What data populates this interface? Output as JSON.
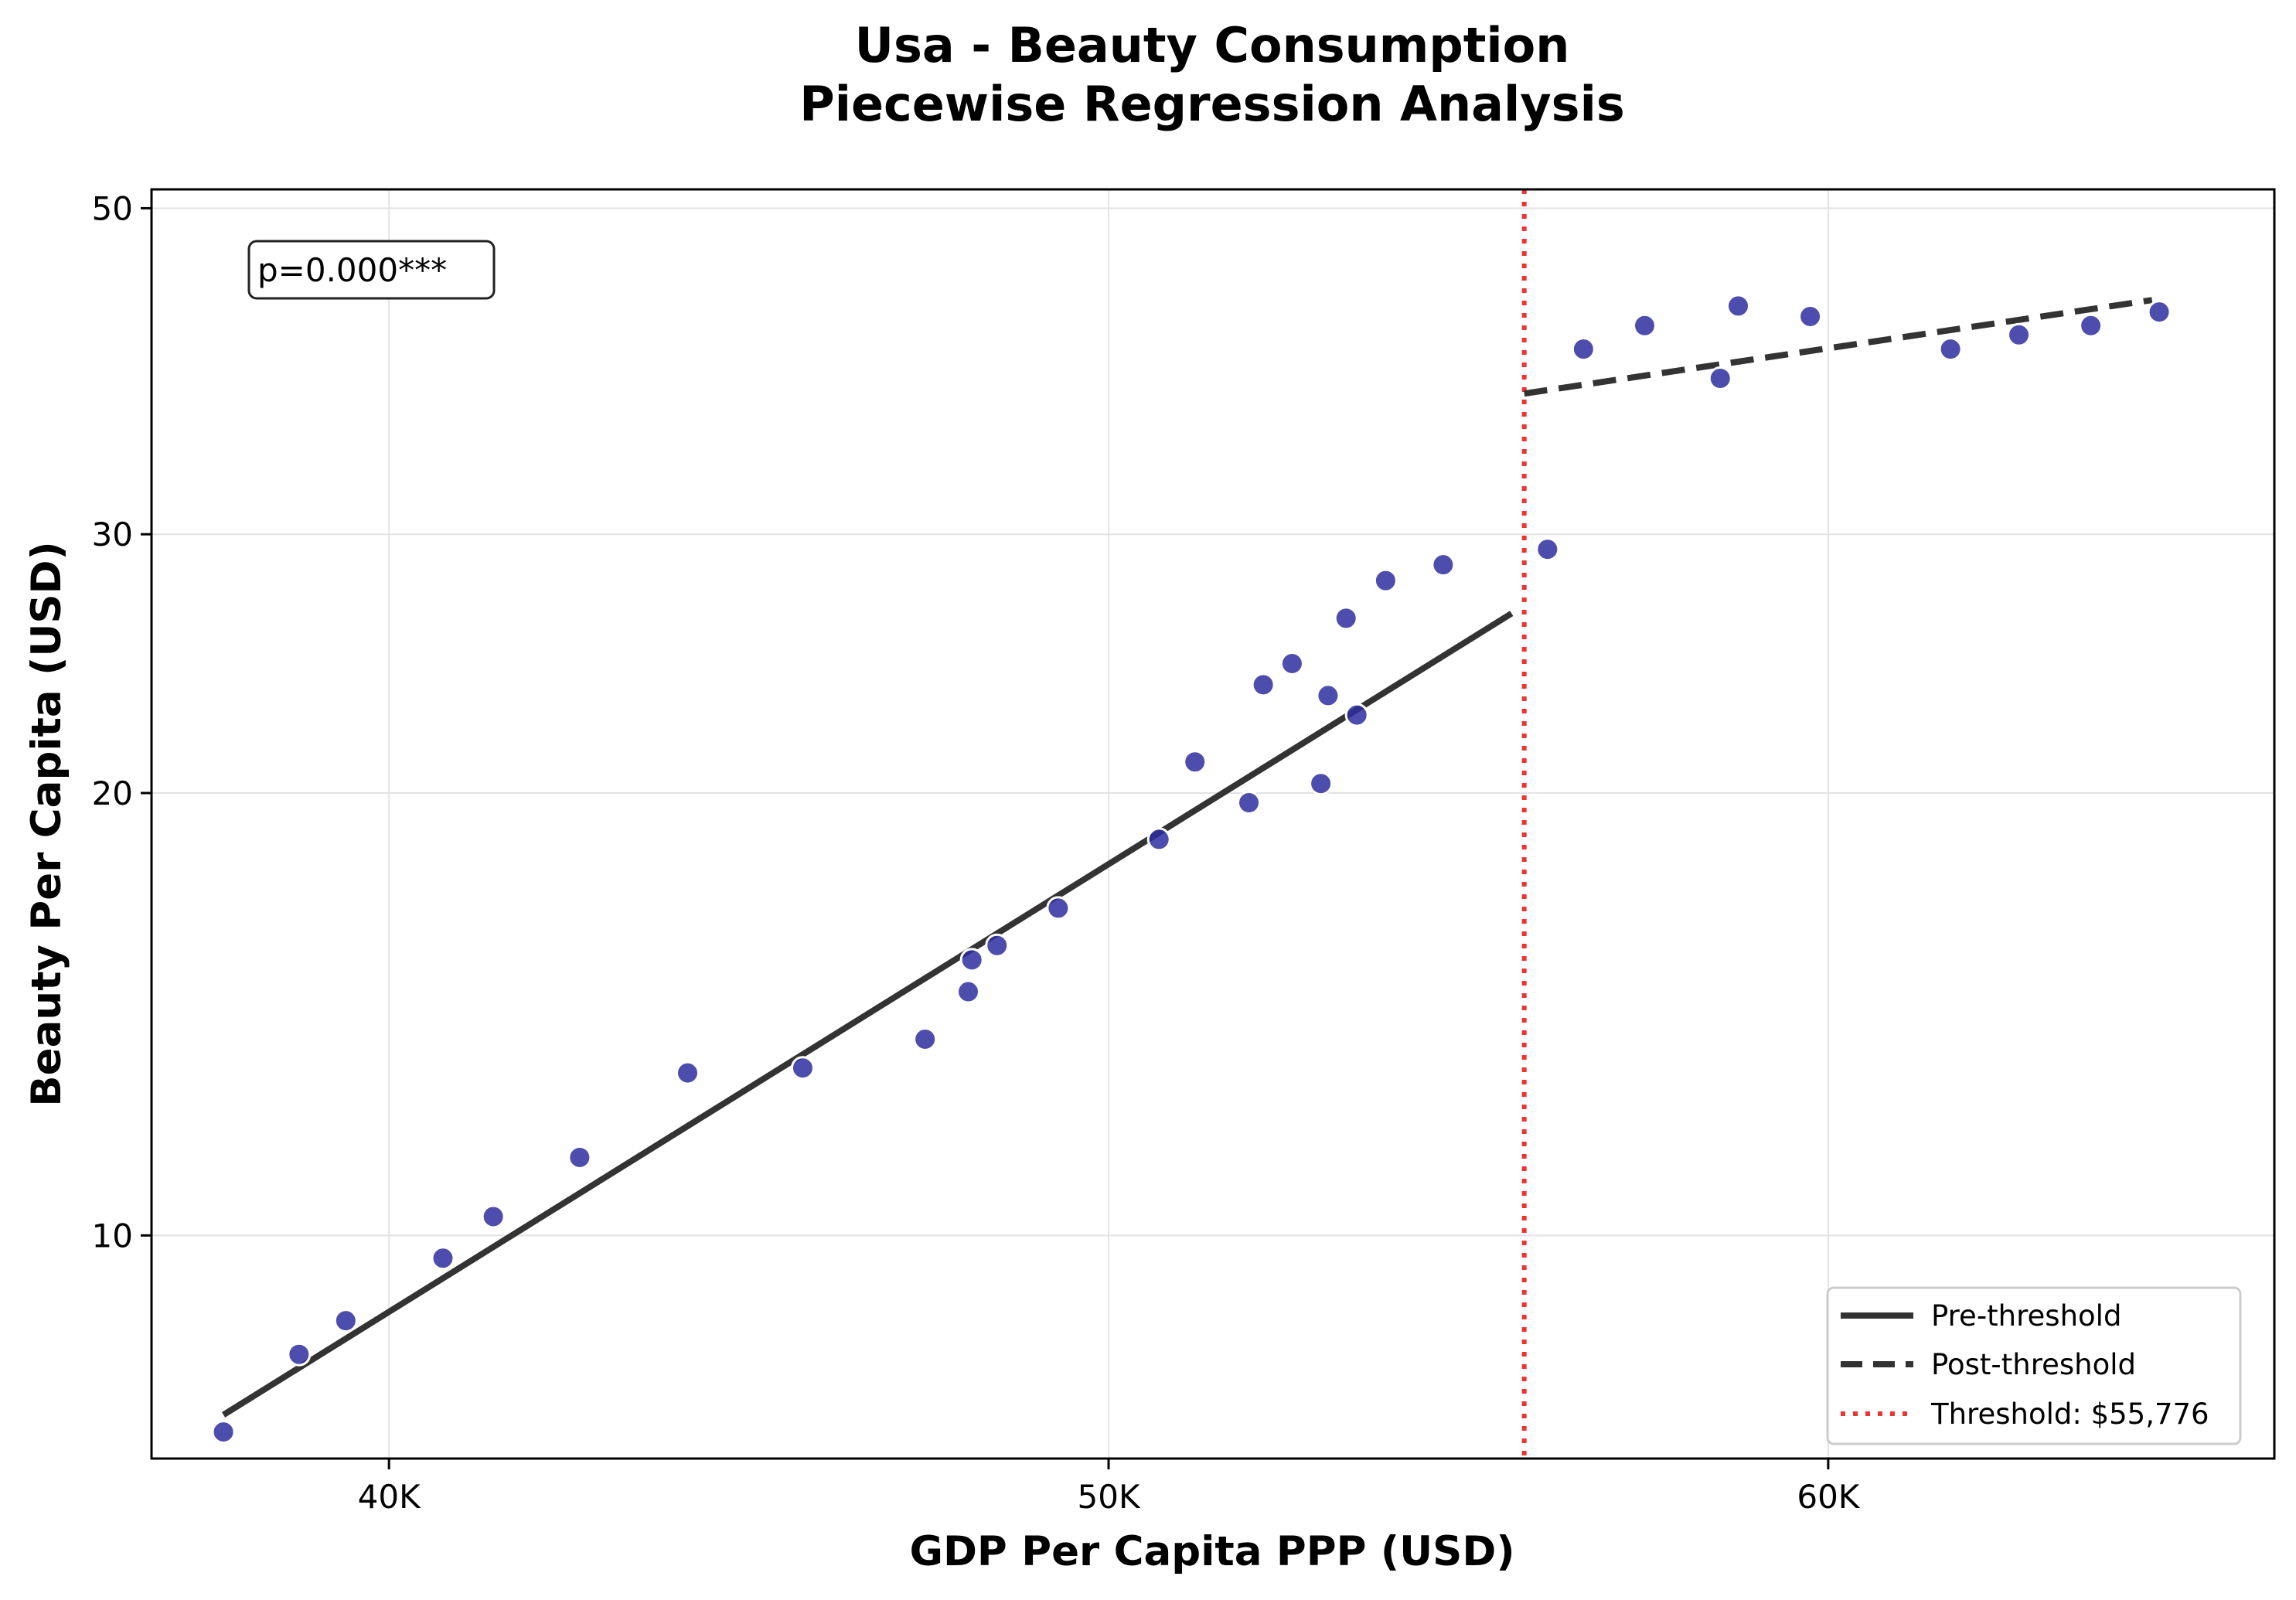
{
  "chart_data": {
    "type": "scatter",
    "title": "Usa - Beauty Consumption",
    "subtitle": "Piecewise Regression Analysis",
    "xlabel": "GDP Per Capita PPP (USD)",
    "ylabel": "Beauty Per Capita (USD)",
    "x_scale": "linear",
    "y_scale": "log",
    "xlim": [
      36700,
      66200
    ],
    "ylim": [
      7.05,
      51.5
    ],
    "x_ticks": [
      40000,
      50000,
      60000
    ],
    "x_tick_labels": [
      "40K",
      "50K",
      "60K"
    ],
    "y_ticks": [
      10,
      20,
      30,
      50
    ],
    "y_tick_labels": [
      "10",
      "20",
      "30",
      "50"
    ],
    "grid": true,
    "legend_position": "bottom-right",
    "annotation": "p=0.000***",
    "colors": {
      "points": "#2e2e9f",
      "fit": "#333333",
      "threshold": "#ee3333"
    },
    "threshold": {
      "x": 55776,
      "legend": "Threshold: $55,776"
    },
    "series": [
      {
        "name": "Data",
        "kind": "scatter",
        "points": [
          [
            37700,
            7.35
          ],
          [
            38750,
            8.3
          ],
          [
            39400,
            8.75
          ],
          [
            40750,
            9.65
          ],
          [
            41450,
            10.3
          ],
          [
            42650,
            11.3
          ],
          [
            44150,
            12.9
          ],
          [
            45750,
            13.0
          ],
          [
            47450,
            13.6
          ],
          [
            48050,
            14.65
          ],
          [
            48100,
            15.4
          ],
          [
            48450,
            15.75
          ],
          [
            49300,
            16.7
          ],
          [
            50700,
            18.6
          ],
          [
            51200,
            21.0
          ],
          [
            51950,
            19.7
          ],
          [
            52150,
            23.7
          ],
          [
            52550,
            24.5
          ],
          [
            52950,
            20.3
          ],
          [
            53050,
            23.3
          ],
          [
            53300,
            26.3
          ],
          [
            53450,
            22.6
          ],
          [
            53850,
            27.9
          ],
          [
            54650,
            28.6
          ],
          [
            56100,
            29.3
          ],
          [
            56600,
            40.1
          ],
          [
            57450,
            41.6
          ],
          [
            58500,
            38.3
          ],
          [
            58750,
            42.9
          ],
          [
            59750,
            42.2
          ],
          [
            61700,
            40.1
          ],
          [
            62650,
            41.0
          ],
          [
            63650,
            41.6
          ],
          [
            64600,
            42.5
          ]
        ]
      },
      {
        "name": "Pre-threshold",
        "kind": "line",
        "style": "solid",
        "points": [
          [
            37700,
            7.55
          ],
          [
            55600,
            26.5
          ]
        ]
      },
      {
        "name": "Post-threshold",
        "kind": "line",
        "style": "dashed",
        "points": [
          [
            55776,
            37.4
          ],
          [
            64500,
            43.3
          ]
        ]
      }
    ],
    "legend": [
      "Pre-threshold",
      "Post-threshold",
      "Threshold: $55,776"
    ]
  }
}
